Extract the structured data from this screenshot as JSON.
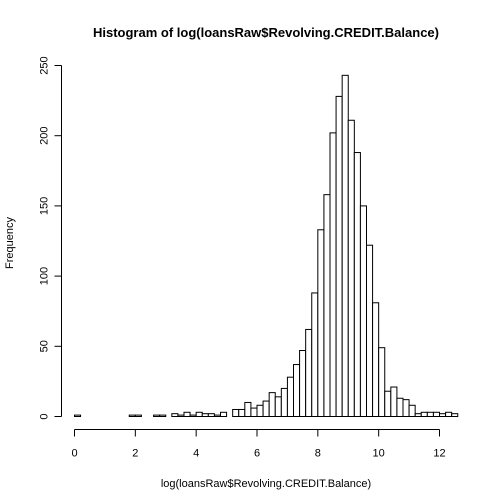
{
  "chart_data": {
    "type": "bar",
    "title": "Histogram of log(loansRaw$Revolving.CREDIT.Balance)",
    "xlabel": "log(loansRaw$Revolving.CREDIT.Balance)",
    "ylabel": "Frequency",
    "xlim": [
      0,
      12.6
    ],
    "ylim": [
      0,
      250
    ],
    "x_ticks": [
      0,
      2,
      4,
      6,
      8,
      10,
      12
    ],
    "y_ticks": [
      0,
      50,
      100,
      150,
      200,
      250
    ],
    "bin_width": 0.2,
    "bin_edges_start": 0,
    "values": [
      1,
      0,
      0,
      0,
      0,
      0,
      0,
      0,
      0,
      1,
      1,
      0,
      0,
      1,
      1,
      0,
      2,
      1,
      3,
      1,
      3,
      2,
      2,
      1,
      3,
      0,
      5,
      5,
      10,
      6,
      8,
      11,
      17,
      14,
      20,
      28,
      37,
      47,
      62,
      88,
      133,
      158,
      202,
      228,
      243,
      211,
      188,
      150,
      122,
      81,
      49,
      18,
      21,
      13,
      12,
      8,
      2,
      3,
      3,
      3,
      2,
      3,
      2
    ]
  },
  "colors": {
    "bar_fill": "#ffffff",
    "bar_stroke": "#000000",
    "background": "#ffffff"
  }
}
